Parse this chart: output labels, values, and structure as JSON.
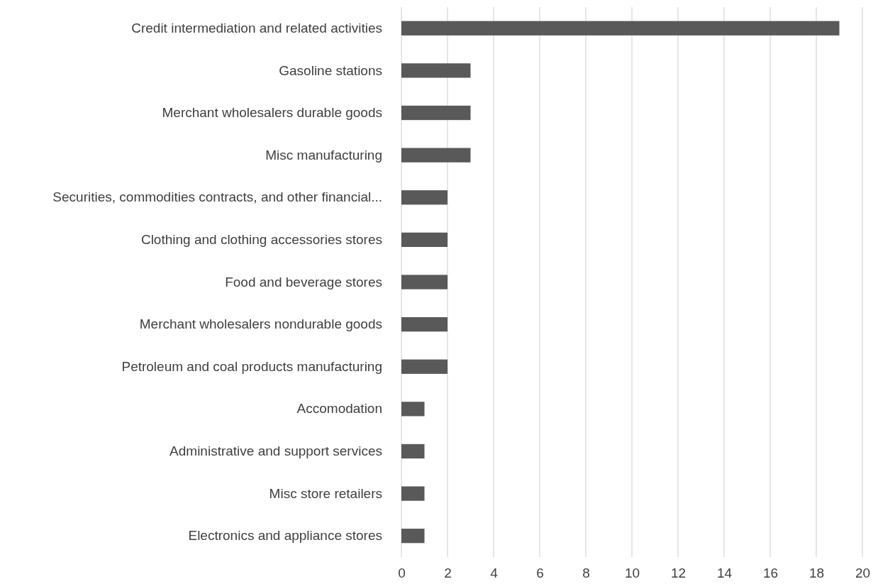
{
  "chart_data": {
    "type": "bar",
    "orientation": "horizontal",
    "categories": [
      "Credit intermediation and related activities",
      "Gasoline stations",
      "Merchant wholesalers durable goods",
      "Misc manufacturing",
      "Securities, commodities contracts, and other financial...",
      "Clothing and clothing accessories stores",
      "Food and beverage stores",
      "Merchant wholesalers nondurable goods",
      "Petroleum and coal products manufacturing",
      "Accomodation",
      "Administrative and support services",
      "Misc store retailers",
      "Electronics and appliance stores"
    ],
    "values": [
      19,
      3,
      3,
      3,
      2,
      2,
      2,
      2,
      2,
      1,
      1,
      1,
      1
    ],
    "color": "#595959",
    "xlim": [
      0,
      20
    ],
    "xticks": [
      0,
      2,
      4,
      6,
      8,
      10,
      12,
      14,
      16,
      18,
      20
    ],
    "grid": "x"
  }
}
